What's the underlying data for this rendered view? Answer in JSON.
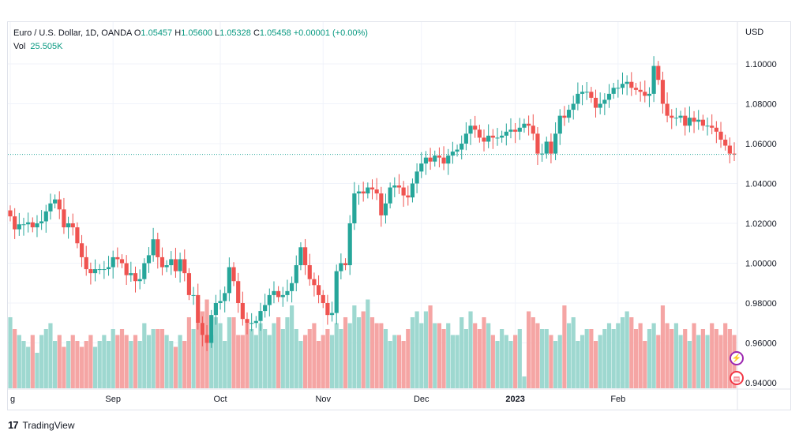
{
  "legend": {
    "symbol": "Euro / U.S. Dollar, 1D, OANDA",
    "open_label": "O",
    "open": "1.05457",
    "high_label": "H",
    "high": "1.05600",
    "low_label": "L",
    "low": "1.05328",
    "close_label": "C",
    "close": "1.05458",
    "change": "+0.00001 (+0.00%)",
    "vol_label": "Vol",
    "vol_value": "25.505K"
  },
  "price_axis": {
    "currency": "USD"
  },
  "footer": {
    "brand": "TradingView",
    "logo_mark": "17"
  },
  "badges": {
    "event_icon": "lightning-icon",
    "flag_icon": "us-flag-icon"
  },
  "colors": {
    "up": "#26a69a",
    "down": "#ef5350",
    "vol_up": "#9ed8d0",
    "vol_down": "#f5a5a4",
    "last_price_line": "#26a69a"
  },
  "chart_data": {
    "type": "candlestick",
    "instrument": "Euro / U.S. Dollar",
    "interval": "1D",
    "source": "OANDA",
    "ylim": [
      0.94,
      1.11
    ],
    "y_ticks": [
      "1.10000",
      "1.08000",
      "1.06000",
      "1.04000",
      "1.02000",
      "1.00000",
      "0.98000",
      "0.96000",
      "0.94000"
    ],
    "x_ticks": [
      {
        "label": "g",
        "index": 0
      },
      {
        "label": "Sep",
        "index": 23
      },
      {
        "label": "Oct",
        "index": 47
      },
      {
        "label": "Nov",
        "index": 70
      },
      {
        "label": "Dec",
        "index": 92
      },
      {
        "label": "2023",
        "index": 113
      },
      {
        "label": "Feb",
        "index": 136
      }
    ],
    "last_price": 1.05458,
    "grid": true,
    "closes": [
      1.0235,
      1.017,
      1.0195,
      1.0195,
      1.0205,
      1.018,
      1.02,
      1.021,
      1.026,
      1.03,
      1.032,
      1.027,
      1.018,
      1.02,
      1.018,
      1.01,
      1.003,
      0.997,
      0.995,
      0.997,
      0.997,
      0.997,
      0.998,
      1.003,
      1.002,
      1.0,
      0.994,
      0.995,
      0.991,
      0.992,
      1.0,
      1.004,
      1.012,
      1.003,
      0.998,
      0.999,
      1.002,
      0.996,
      1.002,
      0.995,
      0.984,
      0.984,
      0.97,
      0.964,
      0.96,
      0.974,
      0.98,
      0.981,
      0.985,
      0.998,
      0.991,
      0.98,
      0.972,
      0.97,
      0.97,
      0.971,
      0.976,
      0.979,
      0.984,
      0.986,
      0.983,
      0.984,
      0.986,
      0.99,
      0.999,
      1.008,
      0.999,
      0.992,
      0.989,
      0.984,
      0.98,
      0.974,
      0.975,
      0.996,
      1.0,
      0.999,
      1.02,
      1.035,
      1.036,
      1.035,
      1.038,
      1.037,
      1.035,
      1.024,
      1.03,
      1.038,
      1.039,
      1.038,
      1.034,
      1.033,
      1.04,
      1.046,
      1.05,
      1.053,
      1.051,
      1.054,
      1.053,
      1.05,
      1.054,
      1.056,
      1.057,
      1.06,
      1.065,
      1.069,
      1.067,
      1.063,
      1.061,
      1.064,
      1.063,
      1.063,
      1.064,
      1.066,
      1.067,
      1.066,
      1.068,
      1.07,
      1.069,
      1.065,
      1.055,
      1.055,
      1.061,
      1.055,
      1.065,
      1.074,
      1.073,
      1.077,
      1.08,
      1.085,
      1.086,
      1.086,
      1.083,
      1.078,
      1.08,
      1.082,
      1.085,
      1.088,
      1.088,
      1.09,
      1.091,
      1.088,
      1.087,
      1.086,
      1.084,
      1.085,
      1.099,
      1.092,
      1.08,
      1.074,
      1.073,
      1.073,
      1.074,
      1.069,
      1.073,
      1.071,
      1.072,
      1.069,
      1.069,
      1.068,
      1.066,
      1.062,
      1.059,
      1.055,
      1.05458
    ],
    "volume_relative": [
      0.6,
      0.5,
      0.45,
      0.4,
      0.35,
      0.45,
      0.3,
      0.45,
      0.5,
      0.55,
      0.4,
      0.45,
      0.35,
      0.4,
      0.45,
      0.4,
      0.35,
      0.4,
      0.45,
      0.35,
      0.4,
      0.45,
      0.4,
      0.5,
      0.45,
      0.5,
      0.45,
      0.4,
      0.45,
      0.4,
      0.55,
      0.45,
      0.5,
      0.5,
      0.5,
      0.45,
      0.4,
      0.35,
      0.45,
      0.4,
      0.6,
      0.5,
      0.55,
      0.65,
      0.75,
      0.45,
      0.6,
      0.55,
      0.4,
      0.6,
      0.6,
      0.45,
      0.45,
      0.55,
      0.5,
      0.45,
      0.55,
      0.5,
      0.45,
      0.55,
      0.6,
      0.5,
      0.6,
      0.7,
      0.5,
      0.4,
      0.45,
      0.5,
      0.55,
      0.4,
      0.45,
      0.5,
      0.45,
      0.55,
      0.5,
      0.6,
      0.55,
      0.7,
      0.6,
      0.65,
      0.75,
      0.6,
      0.55,
      0.55,
      0.5,
      0.4,
      0.45,
      0.45,
      0.4,
      0.5,
      0.6,
      0.65,
      0.55,
      0.65,
      0.7,
      0.55,
      0.55,
      0.5,
      0.55,
      0.45,
      0.45,
      0.6,
      0.5,
      0.65,
      0.55,
      0.5,
      0.6,
      0.55,
      0.45,
      0.4,
      0.5,
      0.45,
      0.4,
      0.45,
      0.5,
      0.1,
      0.65,
      0.6,
      0.55,
      0.5,
      0.5,
      0.45,
      0.4,
      0.45,
      0.7,
      0.55,
      0.6,
      0.4,
      0.45,
      0.5,
      0.5,
      0.4,
      0.45,
      0.5,
      0.55,
      0.5,
      0.55,
      0.6,
      0.65,
      0.6,
      0.5,
      0.55,
      0.4,
      0.5,
      0.55,
      0.45,
      0.7,
      0.55,
      0.5,
      0.55,
      0.45,
      0.5,
      0.4,
      0.55,
      0.45,
      0.5,
      0.45,
      0.55,
      0.5,
      0.45,
      0.55,
      0.5,
      0.45
    ]
  }
}
